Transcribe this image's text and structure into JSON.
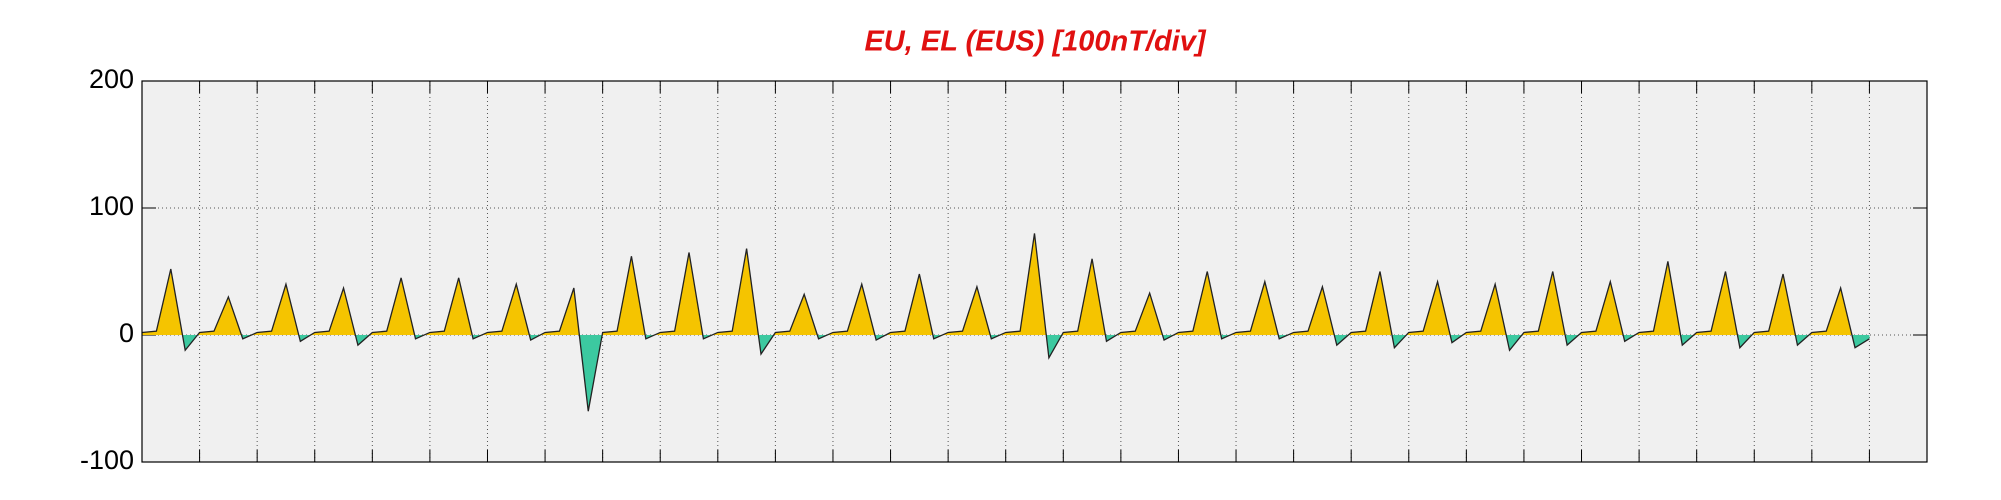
{
  "chart_data": {
    "type": "area",
    "title": "EU, EL (EUS)  [100nT/div]",
    "x": [
      0,
      0.25,
      0.5,
      0.75,
      1,
      1.25,
      1.5,
      1.75,
      2,
      2.25,
      2.5,
      2.75,
      3,
      3.25,
      3.5,
      3.75,
      4,
      4.25,
      4.5,
      4.75,
      5,
      5.25,
      5.5,
      5.75,
      6,
      6.25,
      6.5,
      6.75,
      7,
      7.25,
      7.5,
      7.75,
      8,
      8.25,
      8.5,
      8.75,
      9,
      9.25,
      9.5,
      9.75,
      10,
      10.25,
      10.5,
      10.75,
      11,
      11.25,
      11.5,
      11.75,
      12,
      12.25,
      12.5,
      12.75,
      13,
      13.25,
      13.5,
      13.75,
      14,
      14.25,
      14.5,
      14.75,
      15,
      15.25,
      15.5,
      15.75,
      16,
      16.25,
      16.5,
      16.75,
      17,
      17.25,
      17.5,
      17.75,
      18,
      18.25,
      18.5,
      18.75,
      19,
      19.25,
      19.5,
      19.75,
      20,
      20.25,
      20.5,
      20.75,
      21,
      21.25,
      21.5,
      21.75,
      22,
      22.25,
      22.5,
      22.75,
      23,
      23.25,
      23.5,
      23.75,
      24,
      24.25,
      24.5,
      24.75,
      25,
      25.25,
      25.5,
      25.75,
      26,
      26.25,
      26.5,
      26.75,
      27,
      27.25,
      27.5,
      27.75,
      28,
      28.25,
      28.5,
      28.75,
      29,
      29.25,
      29.5,
      29.75,
      30
    ],
    "values": [
      2,
      3,
      52,
      -12,
      2,
      3,
      30,
      -3,
      2,
      3,
      40,
      -5,
      2,
      3,
      37,
      -8,
      2,
      3,
      45,
      -3,
      2,
      3,
      45,
      -3,
      2,
      3,
      40,
      -4,
      2,
      3,
      37,
      -60,
      2,
      3,
      62,
      -3,
      2,
      3,
      65,
      -3,
      2,
      3,
      68,
      -15,
      2,
      3,
      32,
      -3,
      2,
      3,
      40,
      -4,
      2,
      3,
      48,
      -3,
      2,
      3,
      38,
      -3,
      2,
      3,
      80,
      -18,
      2,
      3,
      60,
      -5,
      2,
      3,
      33,
      -4,
      2,
      3,
      50,
      -3,
      2,
      3,
      42,
      -3,
      2,
      3,
      38,
      -8,
      2,
      3,
      50,
      -10,
      2,
      3,
      42,
      -6,
      2,
      3,
      40,
      -12,
      2,
      3,
      50,
      -8,
      2,
      3,
      42,
      -5,
      2,
      3,
      58,
      -8,
      2,
      3,
      50,
      -10,
      2,
      3,
      48,
      -8,
      2,
      3,
      37,
      -10,
      -3
    ],
    "color": "#222222",
    "fill_above_color": "#f5c400",
    "fill_below_color": "#3cc9a0",
    "xlim": [
      0,
      31
    ],
    "xticks": [
      1,
      2,
      3,
      4,
      5,
      6,
      7,
      8,
      9,
      10,
      11,
      12,
      13,
      14,
      15,
      16,
      17,
      18,
      19,
      20,
      21,
      22,
      23,
      24,
      25,
      26,
      27,
      28,
      29,
      30
    ],
    "ylim": [
      -100,
      200
    ],
    "yticks": [
      -100,
      0,
      100,
      200
    ],
    "grid": true
  }
}
